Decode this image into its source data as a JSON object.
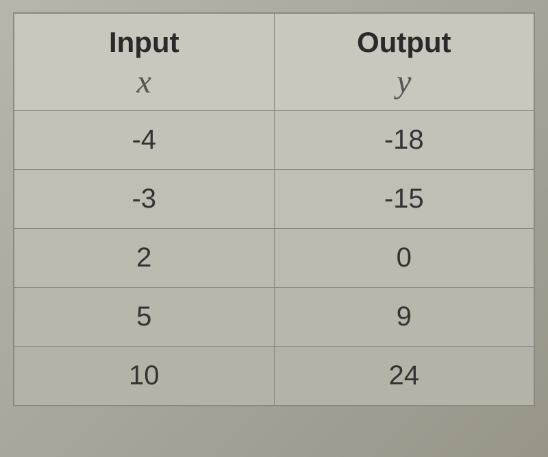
{
  "table": {
    "type": "table",
    "background_color": "#c5c3ba",
    "border_color": "#8a8880",
    "text_color": "#2e2e2e",
    "header": {
      "input_label": "Input",
      "input_var": "x",
      "output_label": "Output",
      "output_var": "y",
      "label_fontsize": 42,
      "var_fontsize": 48,
      "var_font_family": "serif-italic"
    },
    "columns": [
      "x",
      "y"
    ],
    "rows": [
      {
        "x": "-4",
        "y": "-18"
      },
      {
        "x": "-3",
        "y": "-15"
      },
      {
        "x": "2",
        "y": "0"
      },
      {
        "x": "5",
        "y": "9"
      },
      {
        "x": "10",
        "y": "24"
      }
    ],
    "cell_fontsize": 40,
    "row_backgrounds": [
      "#c4c2b8",
      "#c1bfb5",
      "#bdbbb0",
      "#b9b7ac",
      "#b5b3a7"
    ]
  }
}
